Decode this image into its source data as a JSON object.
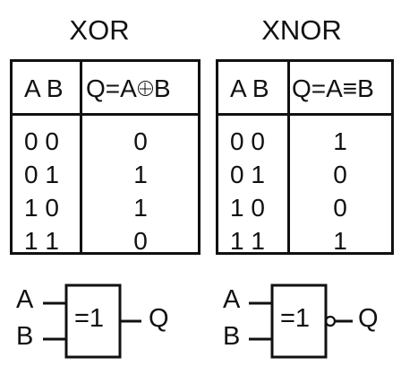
{
  "xor": {
    "title": "XOR",
    "header_inputs": "A B",
    "header_output": "Q=A",
    "header_output_b": "B",
    "rows": [
      {
        "inputs": "0 0",
        "q": "0"
      },
      {
        "inputs": "0 1",
        "q": "1"
      },
      {
        "inputs": "1 0",
        "q": "1"
      },
      {
        "inputs": "1 1",
        "q": "0"
      }
    ],
    "gate": {
      "input_a": "A",
      "input_b": "B",
      "symbol": "=1",
      "output": "Q"
    }
  },
  "xnor": {
    "title": "XNOR",
    "header_inputs": "A B",
    "header_output": "Q=A≡B",
    "rows": [
      {
        "inputs": "0 0",
        "q": "1"
      },
      {
        "inputs": "0 1",
        "q": "0"
      },
      {
        "inputs": "1 0",
        "q": "0"
      },
      {
        "inputs": "1 1",
        "q": "1"
      }
    ],
    "gate": {
      "input_a": "A",
      "input_b": "B",
      "symbol": "=1",
      "output": "Q"
    }
  }
}
